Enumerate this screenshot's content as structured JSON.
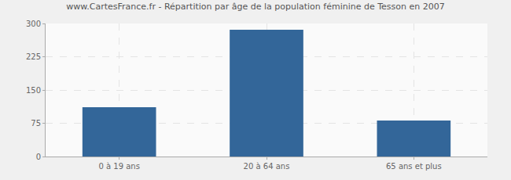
{
  "chart_data": {
    "type": "bar",
    "title": "www.CartesFrance.fr - Répartition par âge de la population féminine de Tesson en 2007",
    "categories": [
      "0 à 19 ans",
      "20 à 64 ans",
      "65 ans et plus"
    ],
    "values": [
      111,
      286,
      81
    ],
    "color": "#336699",
    "ylim": [
      0,
      300
    ],
    "yticks": [
      0,
      75,
      150,
      225,
      300
    ],
    "grid": true
  }
}
